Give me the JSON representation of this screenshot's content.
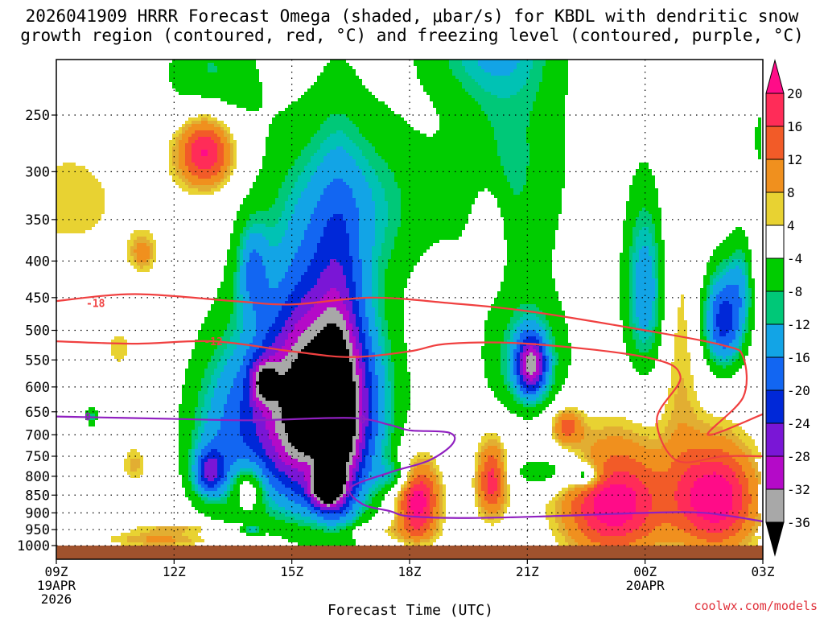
{
  "title": {
    "line1": "2026041909 HRRR Forecast Omega (shaded, μbar/s) for KBDL with dendritic snow",
    "line2": "growth region (contoured, red, °C) and freezing level (contoured, purple, °C)"
  },
  "credit": "coolwx.com/models",
  "chart_data": {
    "type": "contour",
    "title": "2026041909 HRRR Forecast Omega (shaded, μbar/s) for KBDL with dendritic snow growth region (contoured, red, °C) and freezing level (contoured, purple, °C)",
    "xlabel": "Forecast Time (UTC)",
    "ylabel": "",
    "x_ticks": [
      {
        "hour": 0,
        "label": "09Z",
        "sub1": "19APR",
        "sub2": "2026"
      },
      {
        "hour": 3,
        "label": "12Z",
        "sub1": "",
        "sub2": ""
      },
      {
        "hour": 6,
        "label": "15Z",
        "sub1": "",
        "sub2": ""
      },
      {
        "hour": 9,
        "label": "18Z",
        "sub1": "",
        "sub2": ""
      },
      {
        "hour": 12,
        "label": "21Z",
        "sub1": "",
        "sub2": ""
      },
      {
        "hour": 15,
        "label": "00Z",
        "sub1": "20APR",
        "sub2": ""
      },
      {
        "hour": 18,
        "label": "03Z",
        "sub1": "",
        "sub2": ""
      }
    ],
    "xlim": [
      0,
      18
    ],
    "y_ticks": [
      250,
      300,
      350,
      400,
      450,
      500,
      550,
      600,
      650,
      700,
      750,
      800,
      850,
      900,
      950,
      1000
    ],
    "ylim": [
      1013,
      200
    ],
    "y_scale": "log",
    "ground_level_hpa": 1013,
    "colorbar": {
      "labels": [
        "20",
        "16",
        "12",
        "8",
        "4",
        "-4",
        "-8",
        "-12",
        "-16",
        "-20",
        "-24",
        "-28",
        "-32",
        "-36"
      ],
      "bins": [
        {
          "range": [
            20,
            99
          ],
          "color": "#ff0c88"
        },
        {
          "range": [
            16,
            20
          ],
          "color": "#ff2c58"
        },
        {
          "range": [
            12,
            16
          ],
          "color": "#f25b28"
        },
        {
          "range": [
            8,
            12
          ],
          "color": "#f0901e"
        },
        {
          "range": [
            6,
            8
          ],
          "color": "#e2ae32"
        },
        {
          "range": [
            4,
            6
          ],
          "color": "#e8d232"
        },
        {
          "range": [
            -4,
            4
          ],
          "color": "#ffffff"
        },
        {
          "range": [
            -8,
            -4
          ],
          "color": "#00cc00"
        },
        {
          "range": [
            -10,
            -8
          ],
          "color": "#00c878"
        },
        {
          "range": [
            -12,
            -10
          ],
          "color": "#00c2b4"
        },
        {
          "range": [
            -16,
            -12
          ],
          "color": "#12a4e6"
        },
        {
          "range": [
            -20,
            -16
          ],
          "color": "#1266f2"
        },
        {
          "range": [
            -24,
            -20
          ],
          "color": "#0028d8"
        },
        {
          "range": [
            -28,
            -24
          ],
          "color": "#7a16d6"
        },
        {
          "range": [
            -32,
            -28
          ],
          "color": "#b40ac8"
        },
        {
          "range": [
            -36,
            -32
          ],
          "color": "#a8a8a8"
        },
        {
          "range": [
            -99,
            -36
          ],
          "color": "#000000"
        }
      ]
    },
    "omega_features": [
      {
        "t": 14.2,
        "p": 870,
        "rt": 1.3,
        "rp": 160,
        "peak": 24
      },
      {
        "t": 16.8,
        "p": 860,
        "rt": 1.05,
        "rp": 150,
        "peak": 24
      },
      {
        "t": 9.2,
        "p": 865,
        "rt": 0.55,
        "rp": 110,
        "peak": 24
      },
      {
        "t": 11.1,
        "p": 810,
        "rt": 0.4,
        "rp": 100,
        "peak": 19
      },
      {
        "t": 13.0,
        "p": 680,
        "rt": 0.4,
        "rp": 40,
        "peak": 13
      },
      {
        "t": 2.7,
        "p": 980,
        "rt": 1.5,
        "rp": 28,
        "peak": 9
      },
      {
        "t": 3.2,
        "p": 945,
        "rt": 1.2,
        "rp": 14,
        "peak": 6
      },
      {
        "t": 4.9,
        "p": 830,
        "rt": 0.4,
        "rp": 60,
        "peak": 11
      },
      {
        "t": 3.8,
        "p": 280,
        "rt": 0.75,
        "rp": 35,
        "peak": 23
      },
      {
        "t": 0.3,
        "p": 330,
        "rt": 2.0,
        "rp": 80,
        "peak": 5
      },
      {
        "t": 2.2,
        "p": 390,
        "rt": 0.35,
        "rp": 25,
        "peak": 9
      },
      {
        "t": 1.6,
        "p": 530,
        "rt": 0.5,
        "rp": 45,
        "peak": 5
      },
      {
        "t": 2.0,
        "p": 770,
        "rt": 0.35,
        "rp": 50,
        "peak": 7
      },
      {
        "t": 11.0,
        "p": 370,
        "rt": 0.4,
        "rp": 55,
        "peak": 8.5
      },
      {
        "t": 15.9,
        "p": 540,
        "rt": 0.5,
        "rp": 260,
        "peak": 6
      },
      {
        "t": 18.1,
        "p": 400,
        "rt": 0.4,
        "rp": 60,
        "peak": 6
      },
      {
        "t": 6.5,
        "p": 780,
        "rt": 0.35,
        "rp": 35,
        "peak": 5
      },
      {
        "t": 8.1,
        "p": 955,
        "rt": 1.4,
        "rp": 30,
        "peak": 5
      },
      {
        "t": 6.6,
        "p": 640,
        "rt": 1.55,
        "rp": 230,
        "peak": -46
      },
      {
        "t": 6.9,
        "p": 830,
        "rt": 0.38,
        "rp": 50,
        "peak": -28
      },
      {
        "t": 7.2,
        "p": 670,
        "rt": 0.55,
        "rp": 320,
        "peak": -12
      },
      {
        "t": 4.3,
        "p": 700,
        "rt": 1.1,
        "rp": 200,
        "peak": -12
      },
      {
        "t": 3.9,
        "p": 790,
        "rt": 0.4,
        "rp": 60,
        "peak": -17
      },
      {
        "t": 5.3,
        "p": 590,
        "rt": 0.35,
        "rp": 40,
        "peak": -17
      },
      {
        "t": 3.9,
        "p": 225,
        "rt": 1.2,
        "rp": 50,
        "peak": -9
      },
      {
        "t": 5.0,
        "p": 410,
        "rt": 0.4,
        "rp": 60,
        "peak": -11
      },
      {
        "t": 7.7,
        "p": 330,
        "rt": 2.0,
        "rp": 90,
        "peak": -9
      },
      {
        "t": 11.6,
        "p": 285,
        "rt": 1.55,
        "rp": 140,
        "peak": -8.5
      },
      {
        "t": 10.9,
        "p": 200,
        "rt": 1.7,
        "rp": 35,
        "peak": -8
      },
      {
        "t": 12.1,
        "p": 560,
        "rt": 0.38,
        "rp": 55,
        "peak": -24
      },
      {
        "t": 12.0,
        "p": 550,
        "rt": 1.1,
        "rp": 110,
        "peak": -11
      },
      {
        "t": 15.0,
        "p": 440,
        "rt": 0.55,
        "rp": 130,
        "peak": -15
      },
      {
        "t": 17.0,
        "p": 485,
        "rt": 0.55,
        "rp": 80,
        "peak": -22
      },
      {
        "t": 17.5,
        "p": 420,
        "rt": 0.35,
        "rp": 65,
        "peak": -8
      },
      {
        "t": 12.8,
        "p": 790,
        "rt": 1.3,
        "rp": 50,
        "peak": -9
      },
      {
        "t": 13.5,
        "p": 800,
        "rt": 0.3,
        "rp": 25,
        "peak": -12
      },
      {
        "t": 8.7,
        "p": 800,
        "rt": 0.5,
        "rp": 40,
        "peak": -9
      },
      {
        "t": 5.0,
        "p": 950,
        "rt": 0.25,
        "rp": 12,
        "peak": -9
      },
      {
        "t": 0.9,
        "p": 660,
        "rt": 0.16,
        "rp": 22,
        "peak": -9
      },
      {
        "t": 17.9,
        "p": 270,
        "rt": 0.1,
        "rp": 25,
        "peak": -7
      }
    ],
    "contours": [
      {
        "name": "dgz-m18",
        "color": "#f04040",
        "label": "-18",
        "label_at": [
          1.0,
          458
        ],
        "points": [
          [
            0,
            455
          ],
          [
            2.0,
            445
          ],
          [
            4.5,
            455
          ],
          [
            6.0,
            460
          ],
          [
            8.0,
            450
          ],
          [
            10.0,
            458
          ],
          [
            12.0,
            470
          ],
          [
            15.0,
            500
          ],
          [
            17.0,
            525
          ],
          [
            17.5,
            545
          ],
          [
            17.5,
            620
          ],
          [
            16.6,
            700
          ],
          [
            18.0,
            655
          ]
        ]
      },
      {
        "name": "dgz-m12",
        "color": "#f04040",
        "label": "-12",
        "label_at": [
          4.0,
          518
        ],
        "points": [
          [
            0,
            518
          ],
          [
            2.0,
            522
          ],
          [
            4.0,
            518
          ],
          [
            6.0,
            535
          ],
          [
            7.5,
            545
          ],
          [
            9.0,
            535
          ],
          [
            10.0,
            522
          ],
          [
            12.0,
            522
          ],
          [
            15.0,
            545
          ],
          [
            15.9,
            580
          ],
          [
            15.3,
            665
          ],
          [
            15.8,
            760
          ],
          [
            17.0,
            750
          ],
          [
            18.0,
            750
          ]
        ]
      },
      {
        "name": "frz-0",
        "color": "#9020c0",
        "label": "0",
        "label_at": [
          0.8,
          660
        ],
        "label2": "0",
        "label2_at": [
          7.8,
          666
        ],
        "points": [
          [
            0,
            660
          ],
          [
            3.0,
            665
          ],
          [
            5.0,
            668
          ],
          [
            7.5,
            663
          ],
          [
            8.5,
            678
          ],
          [
            9.0,
            690
          ],
          [
            10.0,
            695
          ],
          [
            10.1,
            720
          ],
          [
            9.5,
            760
          ],
          [
            8.5,
            790
          ],
          [
            7.5,
            830
          ],
          [
            7.8,
            875
          ],
          [
            8.5,
            895
          ],
          [
            9.0,
            910
          ],
          [
            10.5,
            915
          ],
          [
            12.5,
            910
          ],
          [
            15.0,
            900
          ],
          [
            16.5,
            900
          ],
          [
            18.0,
            925
          ]
        ]
      }
    ]
  }
}
